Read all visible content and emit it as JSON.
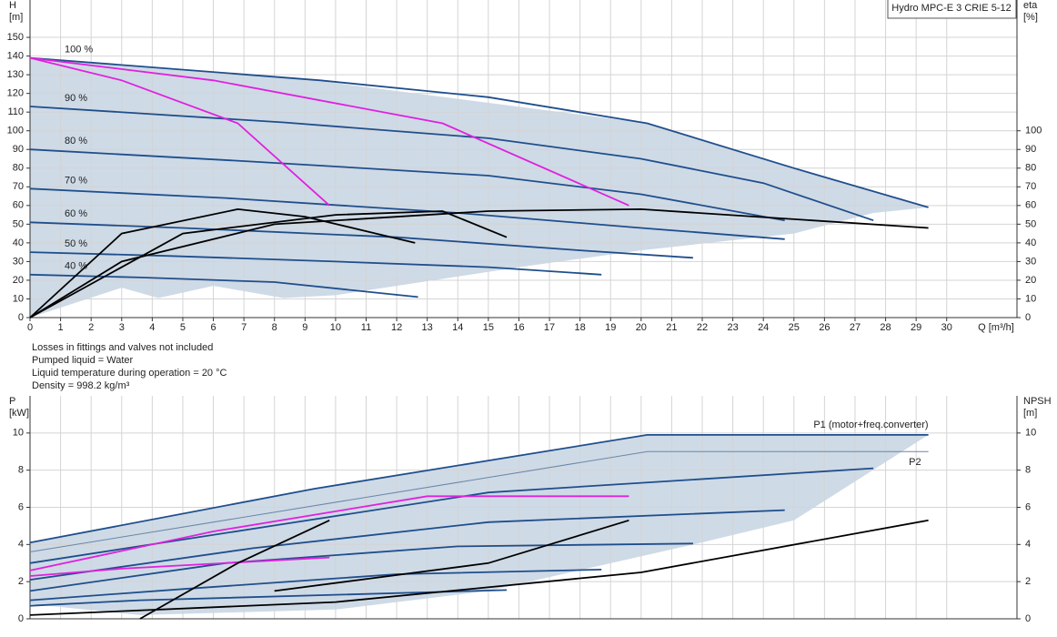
{
  "chart_data": [
    {
      "type": "line",
      "title": "Hydro MPC-E 3 CRIE 5-12",
      "y_label": "H",
      "y_unit": "[m]",
      "y2_label": "eta",
      "y2_unit": "[%]",
      "x_label": "Q [m³/h]",
      "notes": [
        "Losses in fittings and valves not included",
        "Pumped liquid = Water",
        "Liquid temperature during operation = 20 °C",
        "Density = 998.2 kg/m³"
      ],
      "xlim": [
        0,
        32.3
      ],
      "ylim": [
        0,
        170
      ],
      "y2lim": [
        0,
        170
      ],
      "xticks": [
        0,
        1,
        2,
        3,
        4,
        5,
        6,
        7,
        8,
        9,
        10,
        11,
        12,
        13,
        14,
        15,
        16,
        17,
        18,
        19,
        20,
        21,
        22,
        23,
        24,
        25,
        26,
        27,
        28,
        29,
        30
      ],
      "yticks": [
        0,
        10,
        20,
        30,
        40,
        50,
        60,
        70,
        80,
        90,
        100,
        110,
        120,
        130,
        140,
        150
      ],
      "y2ticks": [
        0,
        10,
        20,
        30,
        40,
        50,
        60,
        70,
        80,
        90,
        100
      ],
      "grid": true,
      "area": {
        "color": "#c6d4e2",
        "x": [
          0,
          9.3,
          20.2,
          29.4,
          27.6,
          25,
          20,
          16,
          10,
          8.3,
          6,
          4.2,
          3,
          0
        ],
        "values": [
          139,
          127,
          104,
          59,
          56,
          45,
          36,
          27,
          12,
          10.5,
          17,
          10.5,
          16,
          0
        ]
      },
      "series": [
        {
          "name": "100 %",
          "color": "#1f4e8c",
          "x": [
            0,
            9.5,
            15,
            20.2,
            25,
            29.4
          ],
          "values": [
            139,
            127,
            118,
            104,
            80,
            59
          ]
        },
        {
          "name": "90 %",
          "color": "#1f4e8c",
          "x": [
            0,
            8.3,
            15,
            20,
            24,
            27.6
          ],
          "values": [
            113,
            104.5,
            96,
            85,
            72,
            52
          ]
        },
        {
          "name": "80 %",
          "color": "#1f4e8c",
          "x": [
            0,
            7.3,
            15,
            20,
            24.7
          ],
          "values": [
            90,
            83.5,
            76,
            66,
            52
          ]
        },
        {
          "name": "70 %",
          "color": "#1f4e8c",
          "x": [
            0,
            6.4,
            14,
            20,
            24.7
          ],
          "values": [
            69,
            64,
            56,
            48,
            42
          ]
        },
        {
          "name": "60 %",
          "color": "#1f4e8c",
          "x": [
            0,
            5,
            12,
            18,
            21.7
          ],
          "values": [
            51,
            48,
            43,
            36,
            32
          ]
        },
        {
          "name": "50 %",
          "color": "#1f4e8c",
          "x": [
            0,
            4.6,
            10,
            15,
            18.7
          ],
          "values": [
            35,
            33,
            30,
            27,
            23
          ]
        },
        {
          "name": "40 %",
          "color": "#1f4e8c",
          "x": [
            0,
            3.6,
            8,
            12.7
          ],
          "values": [
            23,
            21.5,
            19,
            11
          ]
        },
        {
          "color": "#e020e0",
          "x": [
            0,
            3,
            6.8,
            9.8
          ],
          "values": [
            139,
            127,
            104,
            60
          ]
        },
        {
          "color": "#e020e0",
          "x": [
            0,
            6,
            13.5,
            19.6
          ],
          "values": [
            139,
            127,
            104,
            60
          ]
        },
        {
          "color": "#000000",
          "axis": "y2",
          "x": [
            0,
            3,
            6.8,
            9,
            12.6
          ],
          "values": [
            0,
            45,
            58,
            54,
            40
          ]
        },
        {
          "color": "#000000",
          "axis": "y2",
          "x": [
            0,
            5,
            10,
            13.5,
            15.6
          ],
          "values": [
            0,
            45,
            55,
            57,
            43
          ]
        },
        {
          "color": "#000000",
          "axis": "y2",
          "x": [
            0,
            3,
            8,
            15,
            20,
            29.4
          ],
          "values": [
            0,
            30,
            50,
            57,
            58,
            48
          ]
        }
      ]
    },
    {
      "type": "line",
      "y_label": "P",
      "y_unit": "[kW]",
      "y2_label": "NPSH",
      "y2_unit": "[m]",
      "xlim": [
        0,
        32.3
      ],
      "ylim": [
        0,
        12
      ],
      "y2lim": [
        0,
        12
      ],
      "yticks": [
        0,
        2,
        4,
        6,
        8,
        10
      ],
      "y2ticks": [
        0,
        2,
        4,
        6,
        8,
        10
      ],
      "grid": true,
      "area": {
        "color": "#c6d4e2",
        "x": [
          0,
          9.3,
          20.2,
          29.4,
          25,
          21.7,
          15,
          10,
          3.6,
          0
        ],
        "values": [
          4.1,
          7,
          9.9,
          9.9,
          5.3,
          4,
          1.5,
          0.5,
          0.2,
          0.8
        ]
      },
      "series": [
        {
          "name": "P1 (motor+freq.converter)",
          "color": "#1f4e8c",
          "x": [
            0,
            9.3,
            20.2,
            29.4
          ],
          "values": [
            4.1,
            7,
            9.9,
            9.9
          ]
        },
        {
          "name": "P2",
          "color": "#6a86a8",
          "x": [
            0,
            20.2,
            29.4
          ],
          "values": [
            3.6,
            9,
            9
          ]
        },
        {
          "color": "#1f4e8c",
          "x": [
            0,
            8.3,
            15,
            27.6
          ],
          "values": [
            3,
            5.1,
            6.8,
            8.1
          ]
        },
        {
          "color": "#1f4e8c",
          "x": [
            0,
            7.3,
            15,
            24.7
          ],
          "values": [
            2.1,
            3.8,
            5.2,
            5.85
          ]
        },
        {
          "color": "#1f4e8c",
          "x": [
            0,
            6.4,
            14,
            21.7
          ],
          "values": [
            1.5,
            3,
            3.9,
            4.05
          ]
        },
        {
          "color": "#1f4e8c",
          "x": [
            0,
            5,
            12,
            18.7
          ],
          "values": [
            1,
            1.6,
            2.4,
            2.65
          ]
        },
        {
          "color": "#1f4e8c",
          "x": [
            0,
            3.6,
            15.6
          ],
          "values": [
            0.7,
            1,
            1.55
          ]
        },
        {
          "color": "#e020e0",
          "x": [
            0,
            6,
            13,
            19.6
          ],
          "values": [
            2.6,
            4.7,
            6.6,
            6.6
          ]
        },
        {
          "color": "#e020e0",
          "x": [
            0,
            3,
            9.8
          ],
          "values": [
            2.3,
            2.7,
            3.3
          ]
        },
        {
          "color": "#000000",
          "x": [
            3.6,
            6.8,
            9.8
          ],
          "values": [
            0,
            3,
            5.3
          ]
        },
        {
          "color": "#000000",
          "x": [
            8,
            15,
            19.6
          ],
          "values": [
            1.5,
            3,
            5.3
          ]
        },
        {
          "color": "#000000",
          "axis": "y2",
          "x": [
            0,
            10,
            20,
            29.4
          ],
          "values": [
            0.2,
            0.9,
            2.5,
            5.3
          ]
        }
      ]
    }
  ]
}
